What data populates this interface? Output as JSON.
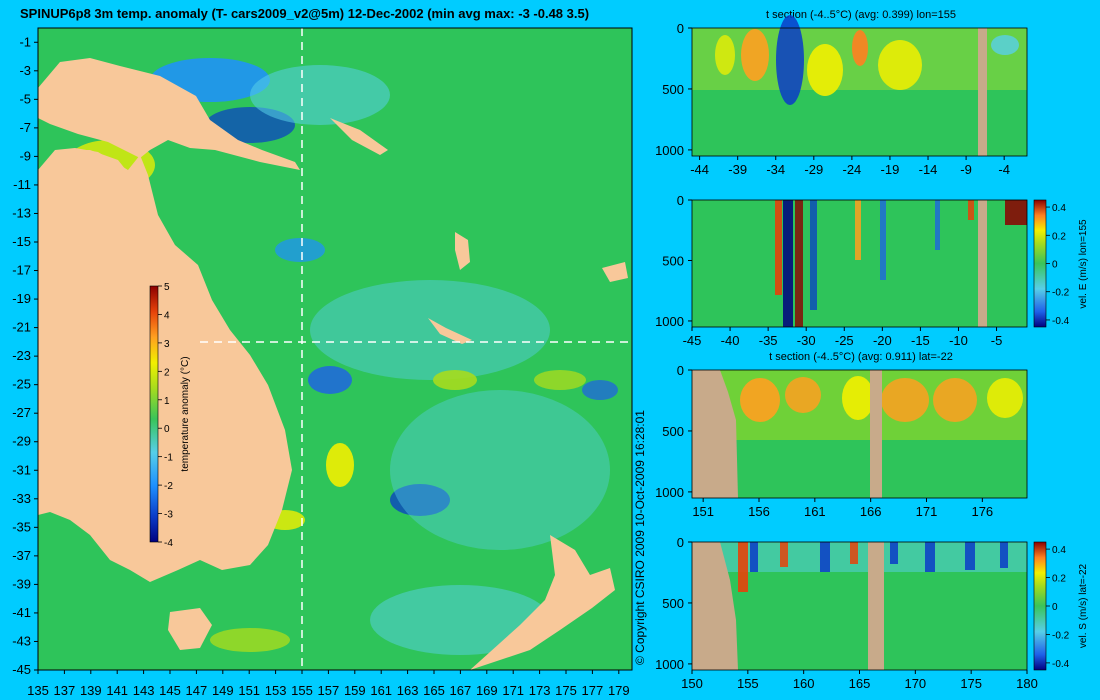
{
  "title": "SPINUP6p8 3m temp. anomaly (T- cars2009_v2@5m) 12-Dec-2002 (min avg max: -3 -0.48 3.5)",
  "copyright": "© Copyright CSIRO 2009   10-Oct-2009 16:28:01",
  "colors": {
    "background": "#00ccff",
    "land": "#f8c89a",
    "section_land": "#c8aa8a",
    "ocean": "#2ec45a",
    "colormap": [
      "#000080",
      "#0a3cc8",
      "#1e90ff",
      "#57cfe8",
      "#39c45a",
      "#a6dc1e",
      "#f2f000",
      "#ffa020",
      "#e6420a",
      "#8c0000"
    ]
  },
  "chart_data": [
    {
      "type": "heatmap",
      "name": "map",
      "x_ticks": [
        "135",
        "137",
        "139",
        "141",
        "143",
        "145",
        "147",
        "149",
        "151",
        "153",
        "155",
        "157",
        "159",
        "161",
        "163",
        "165",
        "167",
        "169",
        "171",
        "173",
        "175",
        "177",
        "179"
      ],
      "y_ticks": [
        "-1",
        "-3",
        "-5",
        "-7",
        "-9",
        "-11",
        "-13",
        "-15",
        "-17",
        "-19",
        "-21",
        "-23",
        "-25",
        "-27",
        "-29",
        "-31",
        "-33",
        "-35",
        "-37",
        "-39",
        "-41",
        "-43",
        "-45"
      ],
      "xlim": [
        135,
        180
      ],
      "ylim": [
        -45,
        0
      ],
      "section_lon": 155,
      "section_lat": -22,
      "colorbar": {
        "label": "temperature anomaly (°C)",
        "ticks": [
          "5",
          "4",
          "3",
          "2",
          "1",
          "0",
          "-1",
          "-2",
          "-3",
          "-4"
        ]
      }
    },
    {
      "type": "heatmap",
      "name": "panel1",
      "title": "t section (-4..5°C) (avg: 0.399) lon=155",
      "x_ticks": [
        "-44",
        "-39",
        "-34",
        "-29",
        "-24",
        "-19",
        "-14",
        "-9",
        "-4"
      ],
      "y_ticks": [
        "0",
        "500",
        "1000"
      ],
      "xlim": [
        -45,
        -1
      ],
      "ylim": [
        1050,
        0
      ]
    },
    {
      "type": "heatmap",
      "name": "panel2",
      "title": "",
      "x_ticks": [
        "-45",
        "-40",
        "-35",
        "-30",
        "-25",
        "-20",
        "-15",
        "-10",
        "-5"
      ],
      "y_ticks": [
        "0",
        "500",
        "1000"
      ],
      "xlim": [
        -45,
        -1
      ],
      "ylim": [
        1050,
        0
      ],
      "colorbar": {
        "label": "vel. E (m/s) lon=155",
        "ticks": [
          "0.4",
          "0.2",
          "0",
          "-0.2",
          "-0.4"
        ]
      }
    },
    {
      "type": "heatmap",
      "name": "panel3",
      "title": "t section (-4..5°C) (avg: 0.911) lat=-22",
      "x_ticks": [
        "151",
        "156",
        "161",
        "166",
        "171",
        "176"
      ],
      "y_ticks": [
        "0",
        "500",
        "1000"
      ],
      "xlim": [
        150,
        180
      ],
      "ylim": [
        1050,
        0
      ]
    },
    {
      "type": "heatmap",
      "name": "panel4",
      "title": "",
      "x_ticks": [
        "150",
        "155",
        "160",
        "165",
        "170",
        "175",
        "180"
      ],
      "y_ticks": [
        "0",
        "500",
        "1000"
      ],
      "xlim": [
        150,
        180
      ],
      "ylim": [
        1050,
        0
      ],
      "colorbar": {
        "label": "vel. S (m/s) lat=-22",
        "ticks": [
          "0.4",
          "0.2",
          "0",
          "-0.2",
          "-0.4"
        ]
      }
    }
  ]
}
